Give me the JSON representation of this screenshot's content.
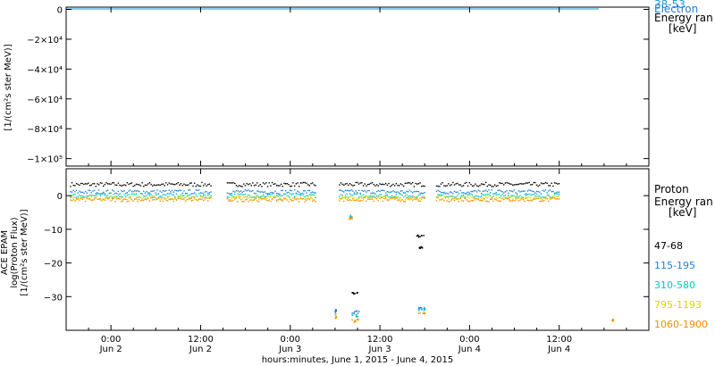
{
  "xaxis": {
    "title": "hours:minutes, June  1, 2015 - June  4, 2015",
    "ticks": [
      {
        "h": 24,
        "time": "0:00",
        "day": "Jun 2"
      },
      {
        "h": 36,
        "time": "12:00",
        "day": "Jun 2"
      },
      {
        "h": 48,
        "time": "0:00",
        "day": "Jun 3"
      },
      {
        "h": 60,
        "time": "12:00",
        "day": "Jun 3"
      },
      {
        "h": 72,
        "time": "0:00",
        "day": "Jun 4"
      },
      {
        "h": 84,
        "time": "12:00",
        "day": "Jun 4"
      }
    ],
    "range_hours": [
      18,
      96
    ]
  },
  "top_panel": {
    "ylabel_lines": [
      "[1/(cm²s ster MeV)]"
    ],
    "yticks": [
      {
        "v": 0,
        "label": "0"
      },
      {
        "v": -20000,
        "label": "−2×10⁴"
      },
      {
        "v": -40000,
        "label": "−4×10⁴"
      },
      {
        "v": -60000,
        "label": "−6×10⁴"
      },
      {
        "v": -80000,
        "label": "−8×10⁴"
      },
      {
        "v": -100000,
        "label": "−1×10⁵"
      }
    ],
    "ylim": [
      -105000,
      1500
    ],
    "legend_title": [
      "Electron",
      "Energy ran",
      "[keV]"
    ],
    "legend_overlap": "38-53"
  },
  "bottom_panel": {
    "ylabel_lines": [
      "ACE EPAM",
      "log(Proton Flux)",
      "[1/(cm²s ster MeV)]"
    ],
    "yticks": [
      {
        "v": 0,
        "label": "0"
      },
      {
        "v": -10,
        "label": "−10"
      },
      {
        "v": -20,
        "label": "−20"
      },
      {
        "v": -30,
        "label": "−30"
      }
    ],
    "ylim": [
      -40,
      8
    ],
    "legend_title": [
      "Proton",
      "Energy ran",
      "[keV]"
    ]
  },
  "chart_data": {
    "type": "scatter",
    "x_unit": "hours since 2015-06-01 00:00",
    "series": [
      {
        "name": "47-68",
        "color": "#000000",
        "baseline": 3.5
      },
      {
        "name": "115-195",
        "color": "#1e7fd8",
        "baseline": 1.3
      },
      {
        "name": "310-580",
        "color": "#00c8c8",
        "baseline": 0.2
      },
      {
        "name": "795-1193",
        "color": "#d6d600",
        "baseline": -0.5
      },
      {
        "name": "1060-1900",
        "color": "#f09000",
        "baseline": -1.0
      }
    ],
    "data_coverage_hours": [
      18.5,
      84
    ],
    "gaps_hours": [
      [
        37.5,
        39.5
      ],
      [
        51.5,
        54.5
      ],
      [
        66.0,
        67.5
      ]
    ],
    "dropouts": [
      {
        "series": "310-580",
        "x": [
          55.8,
          56.2
        ],
        "y": [
          -6.5,
          -5.5
        ]
      },
      {
        "series": "1060-1900",
        "x": [
          55.8,
          56.2
        ],
        "y": [
          -7.0,
          -6.0
        ]
      },
      {
        "series": "47-68",
        "x": [
          56.2,
          57.0
        ],
        "y": [
          -29.0,
          -28.5
        ]
      },
      {
        "series": "47-68",
        "x": [
          64.8,
          65.8
        ],
        "y": [
          -12.5,
          -11.5
        ]
      },
      {
        "series": "47-68",
        "x": [
          65.2,
          65.6
        ],
        "y": [
          -15.5,
          -15.0
        ]
      },
      {
        "series": "115-195",
        "x": [
          53.9,
          54.1
        ],
        "y": [
          -34.5,
          -33.5
        ]
      },
      {
        "series": "1060-1900",
        "x": [
          53.9,
          54.1
        ],
        "y": [
          -36.5,
          -35.0
        ]
      },
      {
        "series": "115-195",
        "x": [
          56.0,
          57.2
        ],
        "y": [
          -35.0,
          -34.0
        ]
      },
      {
        "series": "310-580",
        "x": [
          56.0,
          57.2
        ],
        "y": [
          -36.0,
          -35.0
        ]
      },
      {
        "series": "1060-1900",
        "x": [
          56.0,
          57.2
        ],
        "y": [
          -37.5,
          -36.5
        ]
      },
      {
        "series": "115-195",
        "x": [
          65.0,
          66.0
        ],
        "y": [
          -33.5,
          -33.0
        ]
      },
      {
        "series": "310-580",
        "x": [
          65.0,
          66.0
        ],
        "y": [
          -34.0,
          -33.5
        ]
      },
      {
        "series": "1060-1900",
        "x": [
          65.0,
          66.0
        ],
        "y": [
          -35.0,
          -34.5
        ]
      },
      {
        "series": "1060-1900",
        "x": [
          91.0,
          91.2
        ],
        "y": [
          -37.0,
          -36.5
        ]
      }
    ]
  }
}
